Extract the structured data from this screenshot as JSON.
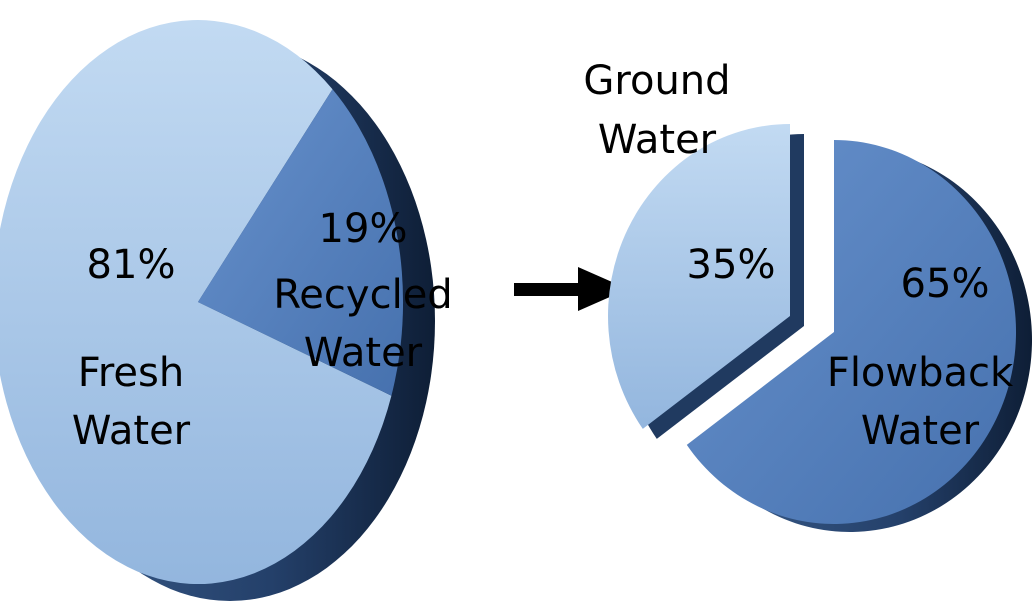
{
  "chart_data": [
    {
      "type": "pie",
      "slices": [
        {
          "label_lines": [
            "Fresh",
            "Water"
          ],
          "value": 81,
          "value_label": "81%",
          "color": "#a9c9ea",
          "side_color": "#6f8fb4"
        },
        {
          "label_lines": [
            "Recycled",
            "Water"
          ],
          "value": 19,
          "value_label": "19%",
          "color": "#5b86c4",
          "side_color": "#2c4c78"
        }
      ]
    },
    {
      "type": "pie",
      "slices": [
        {
          "label_lines": [
            "Ground",
            "Water"
          ],
          "value": 35,
          "value_label": "35%",
          "color": "#a9c9ea",
          "side_color": "#5f7fa6"
        },
        {
          "label_lines": [
            "Flowback",
            "Water"
          ],
          "value": 65,
          "value_label": "65%",
          "color": "#5b86c4",
          "side_color": "#2c4c78"
        }
      ]
    }
  ],
  "arrow": {
    "color": "#000000",
    "meaning": "flows-into"
  }
}
